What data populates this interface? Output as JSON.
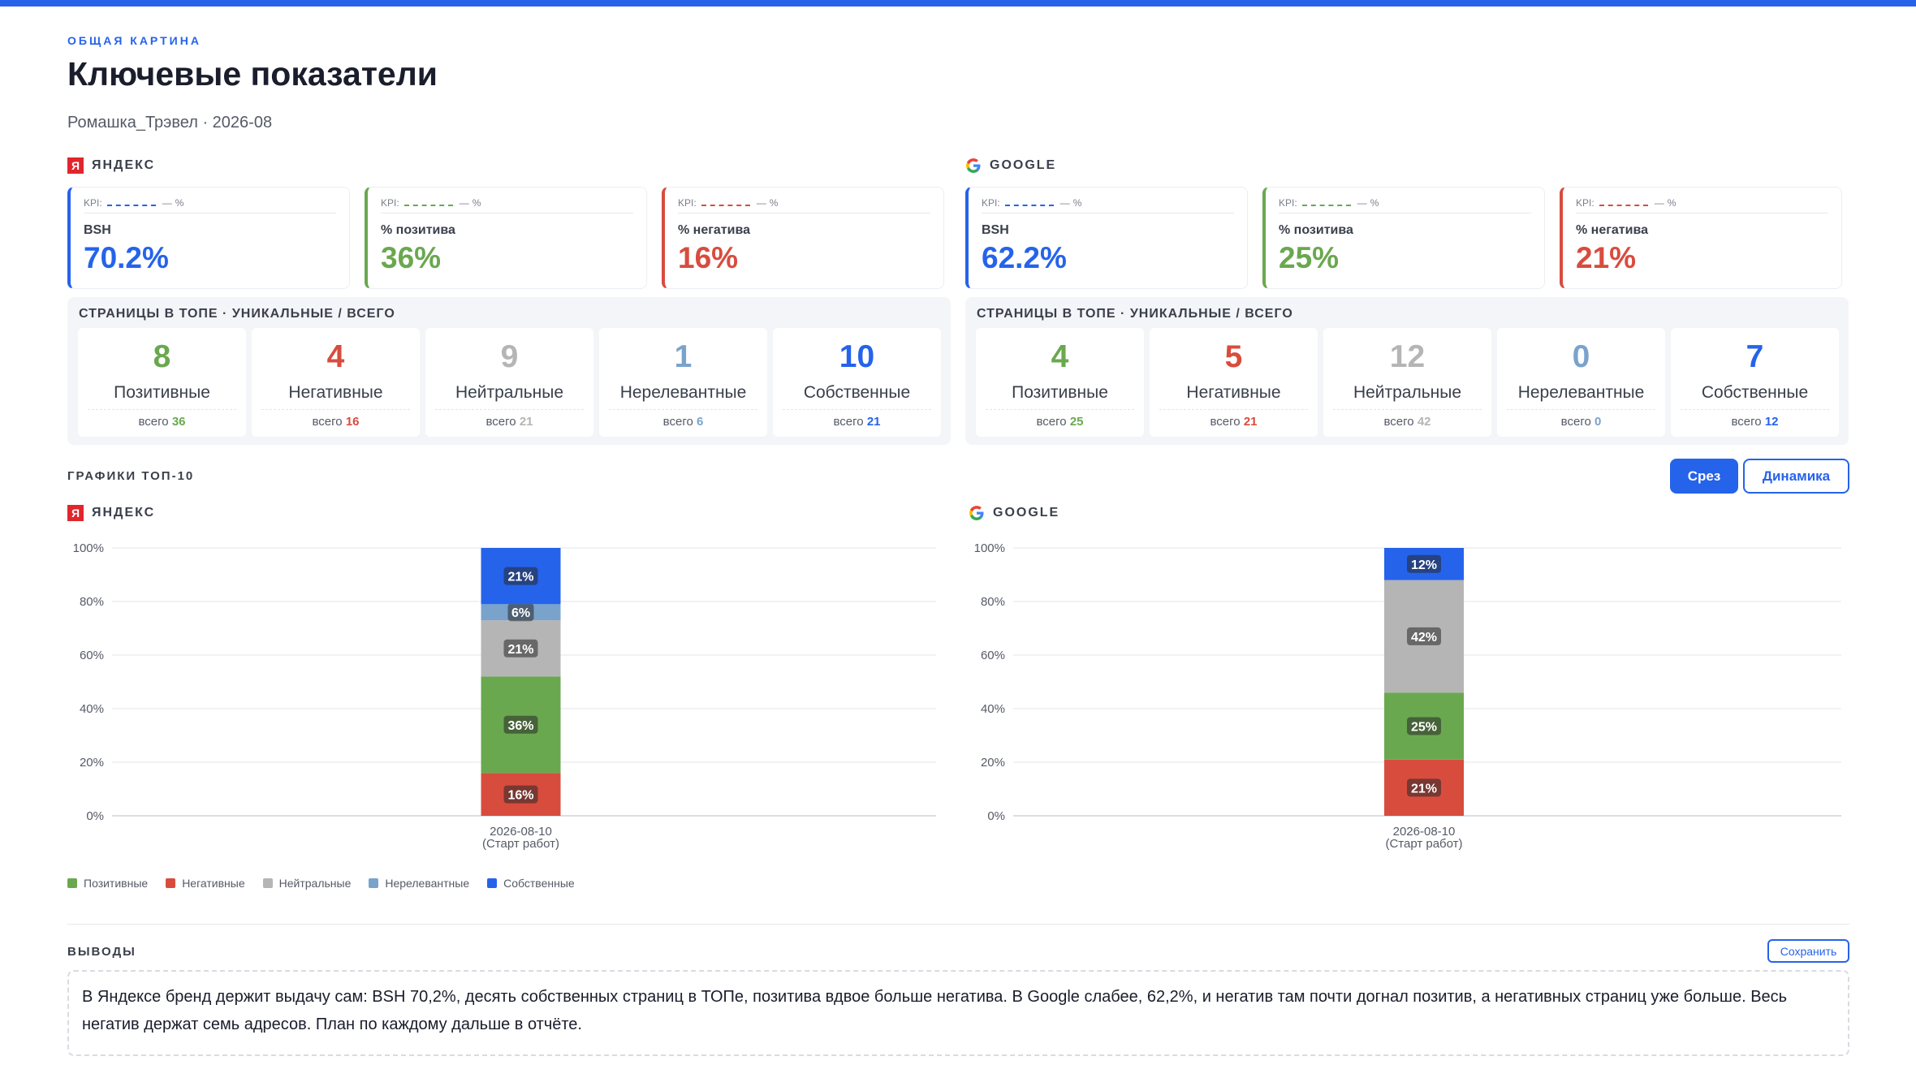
{
  "header": {
    "eyebrow": "ОБЩАЯ КАРТИНА",
    "title": "Ключевые показатели",
    "subtitle": "Ромашка_Трэвел · 2026-08"
  },
  "colors": {
    "accent": "#2563eb",
    "positive": "#6aa84f",
    "negative": "#d84c3e",
    "neutral": "#b5b5b5",
    "irrelevant": "#7aa3cc",
    "own": "#2563eb"
  },
  "yandex": {
    "label": "ЯНДЕКС",
    "icon_char": "Я",
    "kpis": [
      {
        "kpi_label": "KPI:",
        "kpi_target": "—",
        "kpi_unit": "%",
        "name": "BSH",
        "value": "70.2%"
      },
      {
        "kpi_label": "KPI:",
        "kpi_target": "—",
        "kpi_unit": "%",
        "name": "% позитива",
        "value": "36%"
      },
      {
        "kpi_label": "KPI:",
        "kpi_target": "—",
        "kpi_unit": "%",
        "name": "% негатива",
        "value": "16%"
      }
    ],
    "pages_title": "СТРАНИЦЫ В ТОПЕ · УНИКАЛЬНЫЕ / ВСЕГО",
    "pages": [
      {
        "num": "8",
        "name": "Позитивные",
        "total_label": "всего",
        "total": "36"
      },
      {
        "num": "4",
        "name": "Негативные",
        "total_label": "всего",
        "total": "16"
      },
      {
        "num": "9",
        "name": "Нейтральные",
        "total_label": "всего",
        "total": "21"
      },
      {
        "num": "1",
        "name": "Нерелевантные",
        "total_label": "всего",
        "total": "6"
      },
      {
        "num": "10",
        "name": "Собственные",
        "total_label": "всего",
        "total": "21"
      }
    ]
  },
  "google": {
    "label": "GOOGLE",
    "kpis": [
      {
        "kpi_label": "KPI:",
        "kpi_target": "—",
        "kpi_unit": "%",
        "name": "BSH",
        "value": "62.2%"
      },
      {
        "kpi_label": "KPI:",
        "kpi_target": "—",
        "kpi_unit": "%",
        "name": "% позитива",
        "value": "25%"
      },
      {
        "kpi_label": "KPI:",
        "kpi_target": "—",
        "kpi_unit": "%",
        "name": "% негатива",
        "value": "21%"
      }
    ],
    "pages_title": "СТРАНИЦЫ В ТОПЕ · УНИКАЛЬНЫЕ / ВСЕГО",
    "pages": [
      {
        "num": "4",
        "name": "Позитивные",
        "total_label": "всего",
        "total": "25"
      },
      {
        "num": "5",
        "name": "Негативные",
        "total_label": "всего",
        "total": "21"
      },
      {
        "num": "12",
        "name": "Нейтральные",
        "total_label": "всего",
        "total": "42"
      },
      {
        "num": "0",
        "name": "Нерелевантные",
        "total_label": "всего",
        "total": "0"
      },
      {
        "num": "7",
        "name": "Собственные",
        "total_label": "всего",
        "total": "12"
      }
    ]
  },
  "charts_section": {
    "title": "ГРАФИКИ ТОП-10",
    "btn_slice": "Срез",
    "btn_dynamics": "Динамика"
  },
  "chart_data": [
    {
      "type": "bar",
      "stacked": true,
      "title": "ЯНДЕКС",
      "categories": [
        "2026-08-10\n(Старт работ)"
      ],
      "ylim": [
        0,
        100
      ],
      "yticks": [
        "0%",
        "20%",
        "40%",
        "60%",
        "80%",
        "100%"
      ],
      "series": [
        {
          "name": "Позитивные",
          "values": [
            36
          ]
        },
        {
          "name": "Негативные",
          "values": [
            16
          ]
        },
        {
          "name": "Нейтральные",
          "values": [
            21
          ]
        },
        {
          "name": "Нерелевантные",
          "values": [
            6
          ]
        },
        {
          "name": "Собственные",
          "values": [
            21
          ]
        }
      ],
      "stack_order": [
        "Негативные",
        "Позитивные",
        "Нейтральные",
        "Нерелевантные",
        "Собственные"
      ]
    },
    {
      "type": "bar",
      "stacked": true,
      "title": "GOOGLE",
      "categories": [
        "2026-08-10\n(Старт работ)"
      ],
      "ylim": [
        0,
        100
      ],
      "yticks": [
        "0%",
        "20%",
        "40%",
        "60%",
        "80%",
        "100%"
      ],
      "series": [
        {
          "name": "Позитивные",
          "values": [
            25
          ]
        },
        {
          "name": "Негативные",
          "values": [
            21
          ]
        },
        {
          "name": "Нейтральные",
          "values": [
            42
          ]
        },
        {
          "name": "Нерелевантные",
          "values": [
            0
          ]
        },
        {
          "name": "Собственные",
          "values": [
            12
          ]
        }
      ],
      "stack_order": [
        "Негативные",
        "Позитивные",
        "Нейтральные",
        "Нерелевантные",
        "Собственные"
      ]
    }
  ],
  "legend": [
    {
      "name": "Позитивные",
      "color": "#6aa84f"
    },
    {
      "name": "Негативные",
      "color": "#d84c3e"
    },
    {
      "name": "Нейтральные",
      "color": "#b5b5b5"
    },
    {
      "name": "Нерелевантные",
      "color": "#7aa3cc"
    },
    {
      "name": "Собственные",
      "color": "#2563eb"
    }
  ],
  "conclusions": {
    "title": "ВЫВОДЫ",
    "save_label": "Сохранить",
    "text": "В Яндексе бренд держит выдачу сам: BSH 70,2%, десять собственных страниц в ТОПе, позитива вдвое больше негатива. В Google слабее, 62,2%, и негатив там почти догнал позитив, а негативных страниц уже больше. Весь негатив держат семь адресов. План по каждому дальше в отчёте."
  }
}
